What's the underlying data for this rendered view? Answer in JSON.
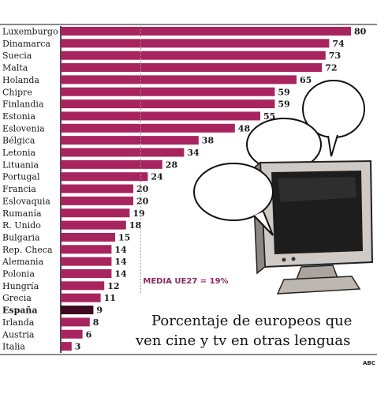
{
  "chart_data": {
    "type": "bar",
    "orientation": "horizontal",
    "categories": [
      "Luxemburgo",
      "Dinamarca",
      "Suecia",
      "Malta",
      "Holanda",
      "Chipre",
      "Finlandia",
      "Estonia",
      "Eslovenia",
      "Bélgica",
      "Letonia",
      "Lituania",
      "Portugal",
      "Francia",
      "Eslovaquia",
      "Rumanía",
      "R. Unido",
      "Bulgaria",
      "Rep. Checa",
      "Alemania",
      "Polonia",
      "Hungría",
      "Grecia",
      "España",
      "Irlanda",
      "Austria",
      "Italia"
    ],
    "values": [
      80,
      74,
      73,
      72,
      65,
      59,
      59,
      55,
      48,
      38,
      34,
      28,
      24,
      20,
      20,
      19,
      18,
      15,
      14,
      14,
      14,
      12,
      11,
      9,
      8,
      6,
      3
    ],
    "highlight_category": "España",
    "average_label": "MEDIA UE27 = 19%",
    "average_value": 19,
    "title_lines": [
      "Porcentaje de europeos que",
      "ven cine y tv en otras lenguas"
    ],
    "source": "ABC",
    "colors": {
      "bar": "#a8245e",
      "highlight": "#3d0a22",
      "average_line": "#999999",
      "average_text": "#8a2a5a"
    }
  }
}
